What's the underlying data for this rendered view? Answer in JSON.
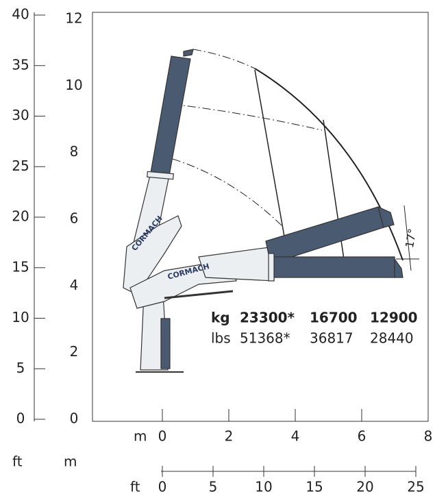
{
  "units": {
    "m_bottom": "m",
    "ft_left": "ft",
    "m_left": "m",
    "ft_bottom": "ft"
  },
  "ft_vertical": [
    "0",
    "5",
    "10",
    "15",
    "20",
    "25",
    "30",
    "35",
    "40"
  ],
  "m_vertical": [
    "0",
    "2",
    "4",
    "6",
    "8",
    "10",
    "12"
  ],
  "m_horizontal": [
    "0",
    "2",
    "4",
    "6",
    "8"
  ],
  "ft_horizontal": [
    "0",
    "5",
    "10",
    "15",
    "20",
    "25"
  ],
  "capacity": [
    [
      "kg",
      "23300*",
      "16700",
      "12900"
    ],
    [
      "lbs",
      "51368*",
      "36817",
      "28440"
    ]
  ],
  "angle": "17°",
  "logos": [
    "CORMACH",
    "CORMACH"
  ]
}
